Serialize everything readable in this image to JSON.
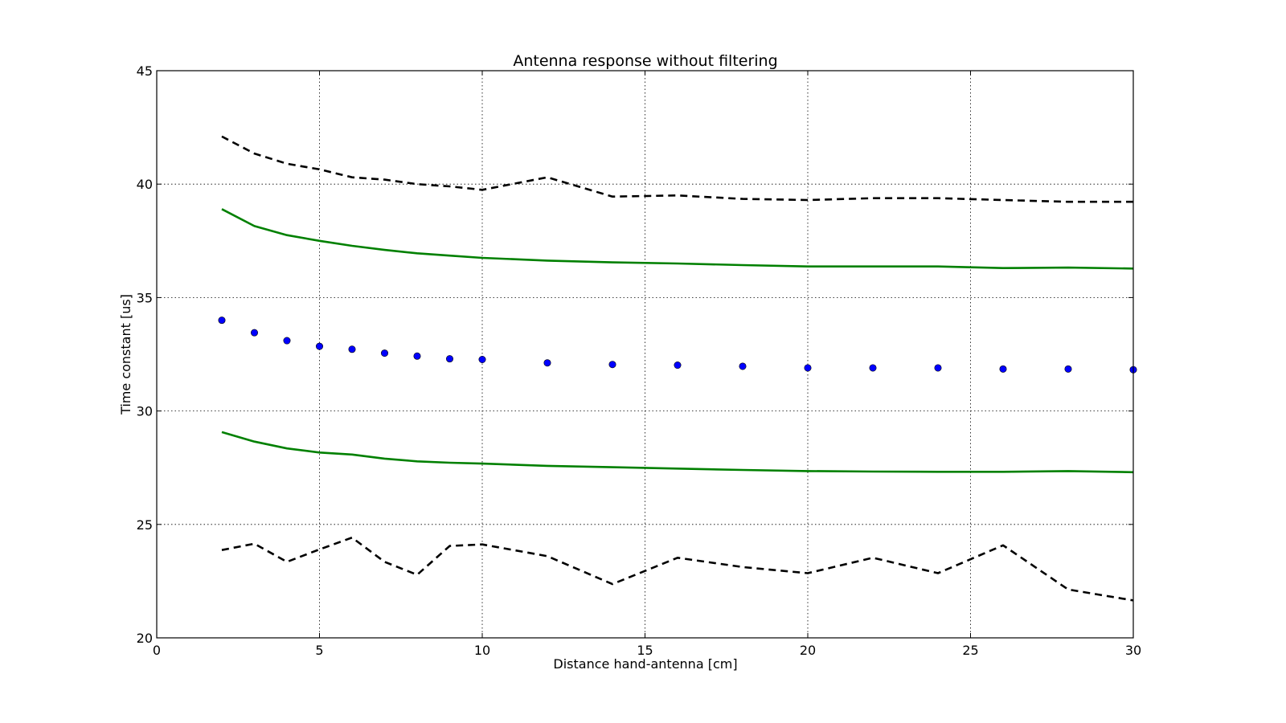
{
  "chart_data": {
    "type": "line",
    "title": "Antenna response without filtering",
    "xlabel": "Distance hand-antenna [cm]",
    "ylabel": "Time constant [us]",
    "xlim": [
      0,
      30
    ],
    "ylim": [
      20,
      45
    ],
    "xticks": [
      0,
      5,
      10,
      15,
      20,
      25,
      30
    ],
    "yticks": [
      20,
      25,
      30,
      35,
      40,
      45
    ],
    "grid": true,
    "legend": "none",
    "series": [
      {
        "style": "dashed",
        "color": "#000000",
        "x": [
          2,
          3,
          4,
          5,
          6,
          7,
          8,
          9,
          10,
          12,
          14,
          16,
          18,
          20,
          22,
          24,
          26,
          28,
          30
        ],
        "y": [
          42.1,
          41.35,
          40.9,
          40.65,
          40.3,
          40.2,
          40.0,
          39.9,
          39.75,
          40.3,
          39.45,
          39.5,
          39.35,
          39.3,
          39.38,
          39.38,
          39.3,
          39.22,
          39.22
        ]
      },
      {
        "style": "solid",
        "color": "#008000",
        "x": [
          2,
          3,
          4,
          5,
          6,
          7,
          8,
          9,
          10,
          12,
          14,
          16,
          18,
          20,
          22,
          24,
          26,
          28,
          30
        ],
        "y": [
          38.9,
          38.15,
          37.75,
          37.5,
          37.28,
          37.1,
          36.95,
          36.85,
          36.75,
          36.63,
          36.55,
          36.5,
          36.43,
          36.37,
          36.37,
          36.37,
          36.3,
          36.32,
          36.28
        ]
      },
      {
        "style": "dots",
        "color": "#0000ff",
        "x": [
          2,
          3,
          4,
          5,
          6,
          7,
          8,
          9,
          10,
          12,
          14,
          16,
          18,
          20,
          22,
          24,
          26,
          28,
          30
        ],
        "y": [
          34.0,
          33.45,
          33.1,
          32.85,
          32.72,
          32.55,
          32.42,
          32.3,
          32.27,
          32.12,
          32.05,
          32.02,
          31.97,
          31.9,
          31.9,
          31.9,
          31.85,
          31.85,
          31.82
        ]
      },
      {
        "style": "solid",
        "color": "#008000",
        "x": [
          2,
          3,
          4,
          5,
          6,
          7,
          8,
          9,
          10,
          12,
          14,
          16,
          18,
          20,
          22,
          24,
          26,
          28,
          30
        ],
        "y": [
          29.07,
          28.65,
          28.35,
          28.17,
          28.08,
          27.9,
          27.78,
          27.72,
          27.68,
          27.58,
          27.52,
          27.46,
          27.4,
          27.35,
          27.33,
          27.32,
          27.32,
          27.35,
          27.3
        ]
      },
      {
        "style": "dashed",
        "color": "#000000",
        "x": [
          2,
          3,
          4,
          5,
          6,
          7,
          8,
          9,
          10,
          12,
          14,
          16,
          18,
          20,
          22,
          24,
          26,
          28,
          30
        ],
        "y": [
          23.87,
          24.15,
          23.35,
          23.9,
          24.42,
          23.35,
          22.78,
          24.05,
          24.12,
          23.6,
          22.37,
          23.53,
          23.12,
          22.85,
          23.53,
          22.85,
          24.08,
          22.13,
          21.65
        ]
      }
    ]
  }
}
